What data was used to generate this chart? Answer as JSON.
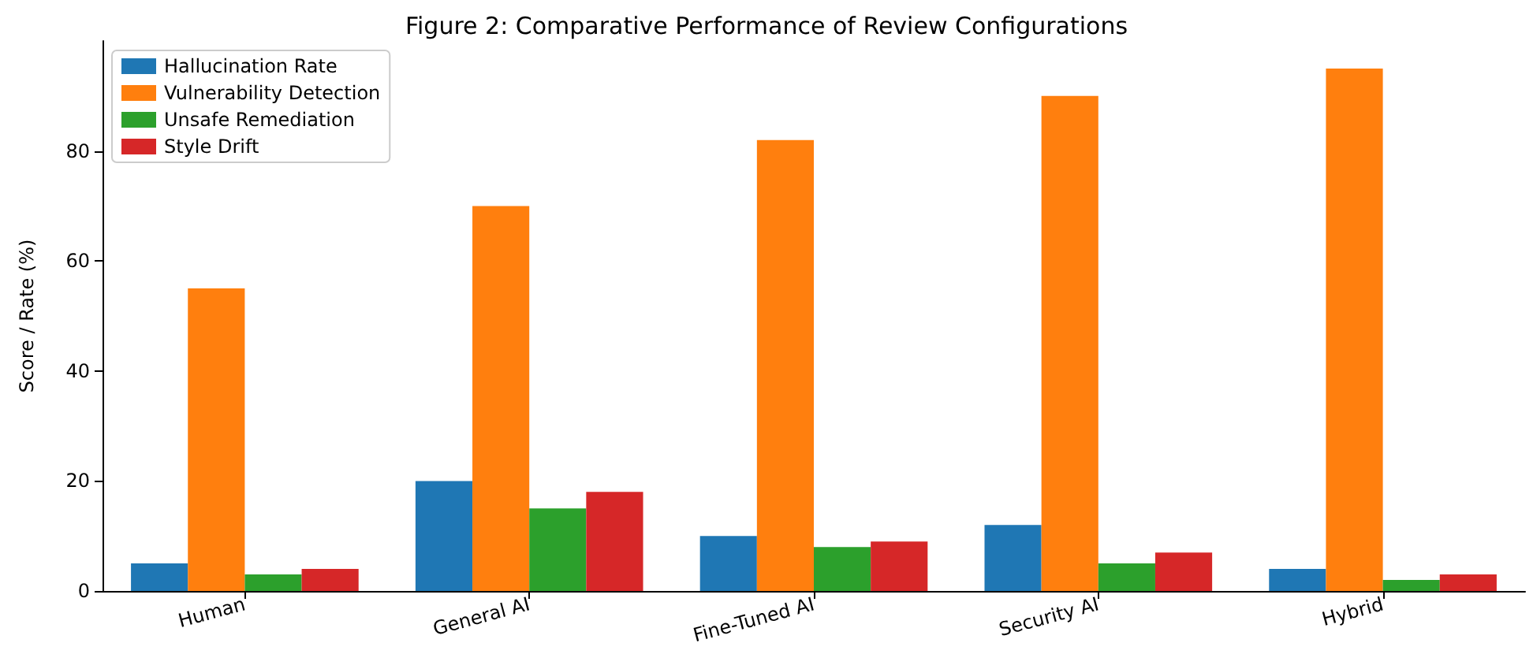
{
  "chart_data": {
    "type": "bar",
    "title": "Figure 2: Comparative Performance of Review Configurations",
    "ylabel": "Score / Rate (%)",
    "categories": [
      "Human",
      "General AI",
      "Fine-Tuned AI",
      "Security AI",
      "Hybrid"
    ],
    "series": [
      {
        "name": "Hallucination Rate",
        "color": "#1f77b4",
        "values": [
          5,
          20,
          10,
          12,
          4
        ]
      },
      {
        "name": "Vulnerability Detection",
        "color": "#ff7f0e",
        "values": [
          55,
          70,
          82,
          90,
          95
        ]
      },
      {
        "name": "Unsafe Remediation",
        "color": "#2ca02c",
        "values": [
          3,
          15,
          8,
          5,
          2
        ]
      },
      {
        "name": "Style Drift",
        "color": "#d62728",
        "values": [
          4,
          18,
          9,
          7,
          3
        ]
      }
    ],
    "ylim": [
      0,
      100
    ],
    "yticks": [
      0,
      20,
      40,
      60,
      80
    ],
    "grid": false,
    "legend": "top left"
  }
}
